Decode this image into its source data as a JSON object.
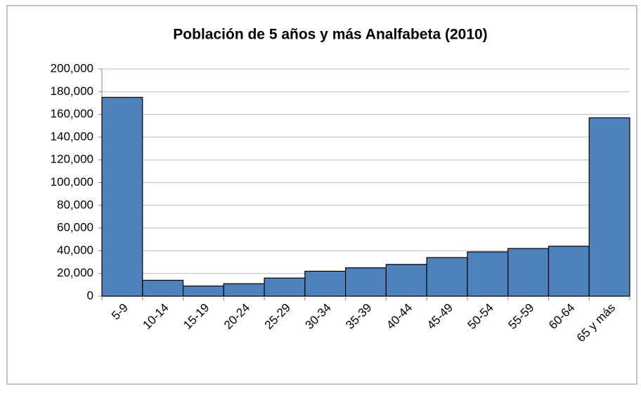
{
  "chart_data": {
    "type": "bar",
    "title": "Población de 5 años y más Analfabeta (2010)",
    "categories": [
      "5-9",
      "10-14",
      "15-19",
      "20-24",
      "25-29",
      "30-34",
      "35-39",
      "40-44",
      "45-49",
      "50-54",
      "55-59",
      "60-64",
      "65 y más"
    ],
    "values": [
      175000,
      14000,
      9000,
      11000,
      16000,
      22000,
      25000,
      28000,
      34000,
      39000,
      42000,
      44000,
      157000
    ],
    "color": "#4f81bd",
    "ylim": [
      0,
      200000
    ],
    "yticks": [
      0,
      {
        "value": 20000,
        "label": "20,000"
      },
      {
        "value": 40000,
        "label": "40,000"
      },
      {
        "value": 60000,
        "label": "60,000"
      },
      {
        "value": 80000,
        "label": "80,000"
      },
      {
        "value": 100000,
        "label": "100,000"
      },
      {
        "value": 120000,
        "label": "120,000"
      },
      {
        "value": 140000,
        "label": "140,000"
      },
      {
        "value": 160000,
        "label": "160,000"
      },
      {
        "value": 180000,
        "label": "180,000"
      },
      {
        "value": 200000,
        "label": "200,000"
      }
    ],
    "grid": true
  }
}
